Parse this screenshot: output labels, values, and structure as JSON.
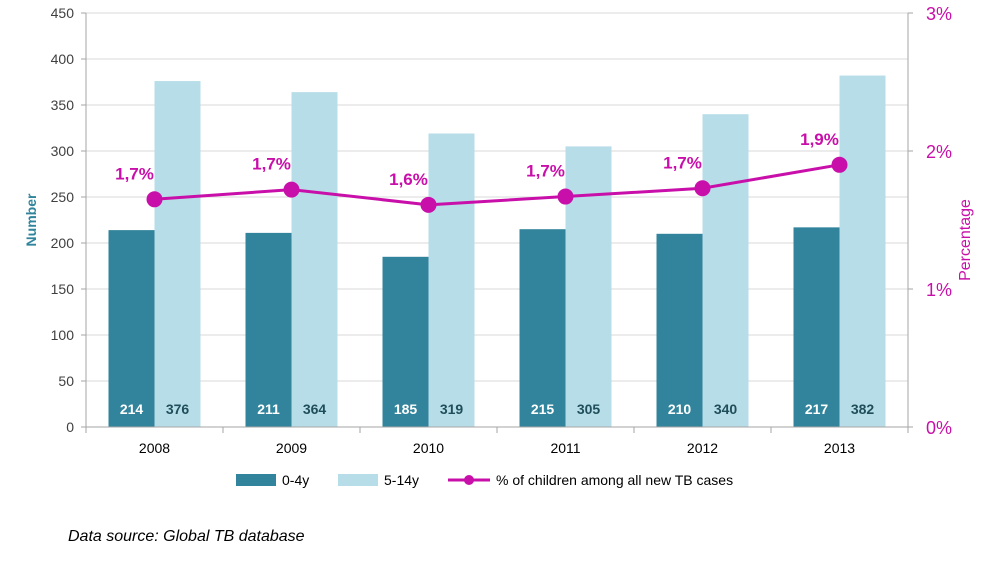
{
  "chart_data": {
    "type": "bar",
    "categories": [
      "2008",
      "2009",
      "2010",
      "2011",
      "2012",
      "2013"
    ],
    "series": [
      {
        "name": "0-4y",
        "type": "bar",
        "values": [
          214,
          211,
          185,
          215,
          210,
          217
        ],
        "color": "#31849b"
      },
      {
        "name": "5-14y",
        "type": "bar",
        "values": [
          376,
          364,
          319,
          305,
          340,
          382
        ],
        "color": "#b7dde8"
      },
      {
        "name": "% of children among all new TB cases",
        "type": "line",
        "axis": "right",
        "values": [
          1.65,
          1.72,
          1.61,
          1.67,
          1.73,
          1.9
        ],
        "labels": [
          "1,7%",
          "1,7%",
          "1,6%",
          "1,7%",
          "1,7%",
          "1,9%"
        ],
        "color": "#c90fa9"
      }
    ],
    "ylabel": "Number",
    "ylim": [
      0,
      450
    ],
    "yticks": [
      "0",
      "50",
      "100",
      "150",
      "200",
      "250",
      "300",
      "350",
      "400",
      "450"
    ],
    "y2label": "Percentage",
    "y2lim": [
      0,
      3
    ],
    "y2ticks": [
      "0%",
      "1%",
      "2%",
      "3%"
    ],
    "grid": true,
    "legend_position": "bottom",
    "colors": {
      "axis_left": "#31849b",
      "axis_right": "#c90fa9",
      "grid": "#d9d9d9"
    }
  },
  "footer": {
    "source": "Data source: Global TB database"
  }
}
